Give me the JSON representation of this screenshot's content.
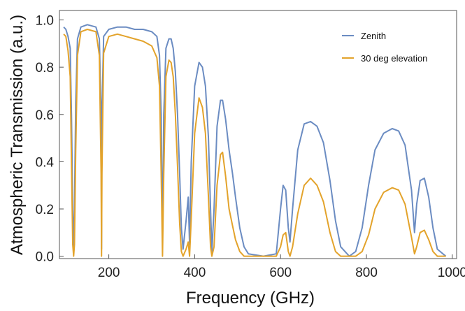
{
  "chart_data": {
    "type": "line",
    "title": "",
    "xlabel": "Frequency (GHz)",
    "ylabel": "Atmospheric Transmission (a.u.)",
    "xlim": [
      85,
      1010
    ],
    "ylim": [
      -0.01,
      1.04
    ],
    "x_ticks": [
      "200",
      "400",
      "600",
      "800",
      "1000"
    ],
    "y_ticks": [
      "0.0",
      "0.2",
      "0.4",
      "0.6",
      "0.8",
      "1.0"
    ],
    "grid": false,
    "legend_position": "top-right",
    "series": [
      {
        "name": "Zenith",
        "color": "#6b8cc2",
        "points": [
          [
            95,
            0.97
          ],
          [
            100,
            0.96
          ],
          [
            105,
            0.93
          ],
          [
            110,
            0.88
          ],
          [
            113,
            0.6
          ],
          [
            116,
            0.2
          ],
          [
            118,
            0.01
          ],
          [
            120,
            0.2
          ],
          [
            123,
            0.65
          ],
          [
            127,
            0.92
          ],
          [
            135,
            0.97
          ],
          [
            150,
            0.98
          ],
          [
            170,
            0.97
          ],
          [
            178,
            0.92
          ],
          [
            182,
            0.6
          ],
          [
            183,
            0.03
          ],
          [
            184,
            0.6
          ],
          [
            188,
            0.93
          ],
          [
            200,
            0.96
          ],
          [
            220,
            0.97
          ],
          [
            240,
            0.97
          ],
          [
            260,
            0.96
          ],
          [
            280,
            0.96
          ],
          [
            300,
            0.95
          ],
          [
            312,
            0.93
          ],
          [
            318,
            0.85
          ],
          [
            322,
            0.6
          ],
          [
            325,
            0.06
          ],
          [
            328,
            0.6
          ],
          [
            333,
            0.88
          ],
          [
            340,
            0.92
          ],
          [
            345,
            0.92
          ],
          [
            350,
            0.88
          ],
          [
            355,
            0.78
          ],
          [
            360,
            0.6
          ],
          [
            365,
            0.35
          ],
          [
            369,
            0.12
          ],
          [
            373,
            0.03
          ],
          [
            380,
            0.15
          ],
          [
            385,
            0.25
          ],
          [
            388,
            0.05
          ],
          [
            392,
            0.4
          ],
          [
            400,
            0.72
          ],
          [
            410,
            0.82
          ],
          [
            418,
            0.8
          ],
          [
            425,
            0.72
          ],
          [
            432,
            0.5
          ],
          [
            437,
            0.2
          ],
          [
            440,
            0.02
          ],
          [
            445,
            0.2
          ],
          [
            452,
            0.55
          ],
          [
            460,
            0.66
          ],
          [
            465,
            0.66
          ],
          [
            472,
            0.58
          ],
          [
            480,
            0.45
          ],
          [
            488,
            0.35
          ],
          [
            495,
            0.25
          ],
          [
            505,
            0.12
          ],
          [
            515,
            0.04
          ],
          [
            525,
            0.01
          ],
          [
            560,
            0.0
          ],
          [
            590,
            0.01
          ],
          [
            600,
            0.2
          ],
          [
            606,
            0.3
          ],
          [
            612,
            0.28
          ],
          [
            618,
            0.12
          ],
          [
            622,
            0.06
          ],
          [
            628,
            0.2
          ],
          [
            640,
            0.45
          ],
          [
            655,
            0.56
          ],
          [
            670,
            0.57
          ],
          [
            685,
            0.55
          ],
          [
            700,
            0.48
          ],
          [
            715,
            0.32
          ],
          [
            728,
            0.15
          ],
          [
            740,
            0.04
          ],
          [
            760,
            0.0
          ],
          [
            775,
            0.02
          ],
          [
            790,
            0.12
          ],
          [
            805,
            0.3
          ],
          [
            820,
            0.45
          ],
          [
            840,
            0.52
          ],
          [
            860,
            0.54
          ],
          [
            875,
            0.53
          ],
          [
            890,
            0.47
          ],
          [
            905,
            0.28
          ],
          [
            912,
            0.1
          ],
          [
            917,
            0.22
          ],
          [
            925,
            0.32
          ],
          [
            935,
            0.33
          ],
          [
            945,
            0.25
          ],
          [
            955,
            0.12
          ],
          [
            965,
            0.03
          ],
          [
            985,
            0.0
          ]
        ]
      },
      {
        "name": "30 deg elevation",
        "color": "#e3a32b",
        "points": [
          [
            95,
            0.94
          ],
          [
            100,
            0.93
          ],
          [
            105,
            0.87
          ],
          [
            110,
            0.76
          ],
          [
            113,
            0.4
          ],
          [
            116,
            0.05
          ],
          [
            118,
            0.0
          ],
          [
            120,
            0.05
          ],
          [
            123,
            0.45
          ],
          [
            127,
            0.85
          ],
          [
            135,
            0.95
          ],
          [
            150,
            0.96
          ],
          [
            170,
            0.95
          ],
          [
            178,
            0.85
          ],
          [
            182,
            0.35
          ],
          [
            183,
            0.0
          ],
          [
            184,
            0.35
          ],
          [
            188,
            0.86
          ],
          [
            200,
            0.93
          ],
          [
            220,
            0.94
          ],
          [
            240,
            0.93
          ],
          [
            260,
            0.92
          ],
          [
            280,
            0.91
          ],
          [
            300,
            0.89
          ],
          [
            312,
            0.84
          ],
          [
            318,
            0.72
          ],
          [
            322,
            0.35
          ],
          [
            325,
            0.0
          ],
          [
            328,
            0.35
          ],
          [
            333,
            0.76
          ],
          [
            340,
            0.83
          ],
          [
            345,
            0.82
          ],
          [
            350,
            0.76
          ],
          [
            355,
            0.6
          ],
          [
            360,
            0.38
          ],
          [
            365,
            0.14
          ],
          [
            369,
            0.02
          ],
          [
            373,
            0.0
          ],
          [
            380,
            0.03
          ],
          [
            385,
            0.06
          ],
          [
            388,
            0.0
          ],
          [
            392,
            0.16
          ],
          [
            400,
            0.52
          ],
          [
            410,
            0.67
          ],
          [
            418,
            0.63
          ],
          [
            425,
            0.52
          ],
          [
            432,
            0.25
          ],
          [
            437,
            0.04
          ],
          [
            440,
            0.0
          ],
          [
            445,
            0.04
          ],
          [
            452,
            0.3
          ],
          [
            460,
            0.43
          ],
          [
            465,
            0.44
          ],
          [
            472,
            0.34
          ],
          [
            480,
            0.2
          ],
          [
            488,
            0.13
          ],
          [
            495,
            0.07
          ],
          [
            505,
            0.02
          ],
          [
            515,
            0.0
          ],
          [
            560,
            0.0
          ],
          [
            590,
            0.0
          ],
          [
            600,
            0.04
          ],
          [
            606,
            0.09
          ],
          [
            612,
            0.1
          ],
          [
            618,
            0.02
          ],
          [
            622,
            0.0
          ],
          [
            628,
            0.04
          ],
          [
            640,
            0.18
          ],
          [
            655,
            0.3
          ],
          [
            670,
            0.33
          ],
          [
            685,
            0.3
          ],
          [
            700,
            0.23
          ],
          [
            715,
            0.1
          ],
          [
            728,
            0.02
          ],
          [
            740,
            0.0
          ],
          [
            775,
            0.0
          ],
          [
            790,
            0.02
          ],
          [
            805,
            0.09
          ],
          [
            820,
            0.2
          ],
          [
            840,
            0.27
          ],
          [
            860,
            0.29
          ],
          [
            875,
            0.28
          ],
          [
            890,
            0.22
          ],
          [
            905,
            0.08
          ],
          [
            912,
            0.01
          ],
          [
            917,
            0.04
          ],
          [
            925,
            0.1
          ],
          [
            935,
            0.11
          ],
          [
            945,
            0.07
          ],
          [
            955,
            0.02
          ],
          [
            965,
            0.0
          ],
          [
            985,
            0.0
          ]
        ]
      }
    ]
  }
}
